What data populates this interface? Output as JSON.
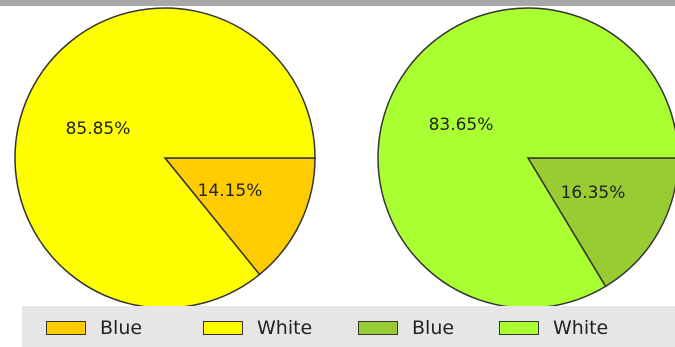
{
  "chart_data": [
    {
      "type": "pie",
      "slices": [
        {
          "label": "Blue",
          "value": 14.15,
          "display": "14.15%",
          "color": "#FFCC00"
        },
        {
          "label": "White",
          "value": 85.85,
          "display": "85.85%",
          "color": "#FFFF00"
        }
      ]
    },
    {
      "type": "pie",
      "slices": [
        {
          "label": "Blue",
          "value": 16.35,
          "display": "16.35%",
          "color": "#99CC33"
        },
        {
          "label": "White",
          "value": 83.65,
          "display": "83.65%",
          "color": "#AAFF33"
        }
      ]
    }
  ],
  "legend": [
    {
      "label": "Blue",
      "color": "#FFCC00"
    },
    {
      "label": "White",
      "color": "#FFFF00"
    },
    {
      "label": "Blue",
      "color": "#99CC33"
    },
    {
      "label": "White",
      "color": "#AAFF33"
    }
  ]
}
